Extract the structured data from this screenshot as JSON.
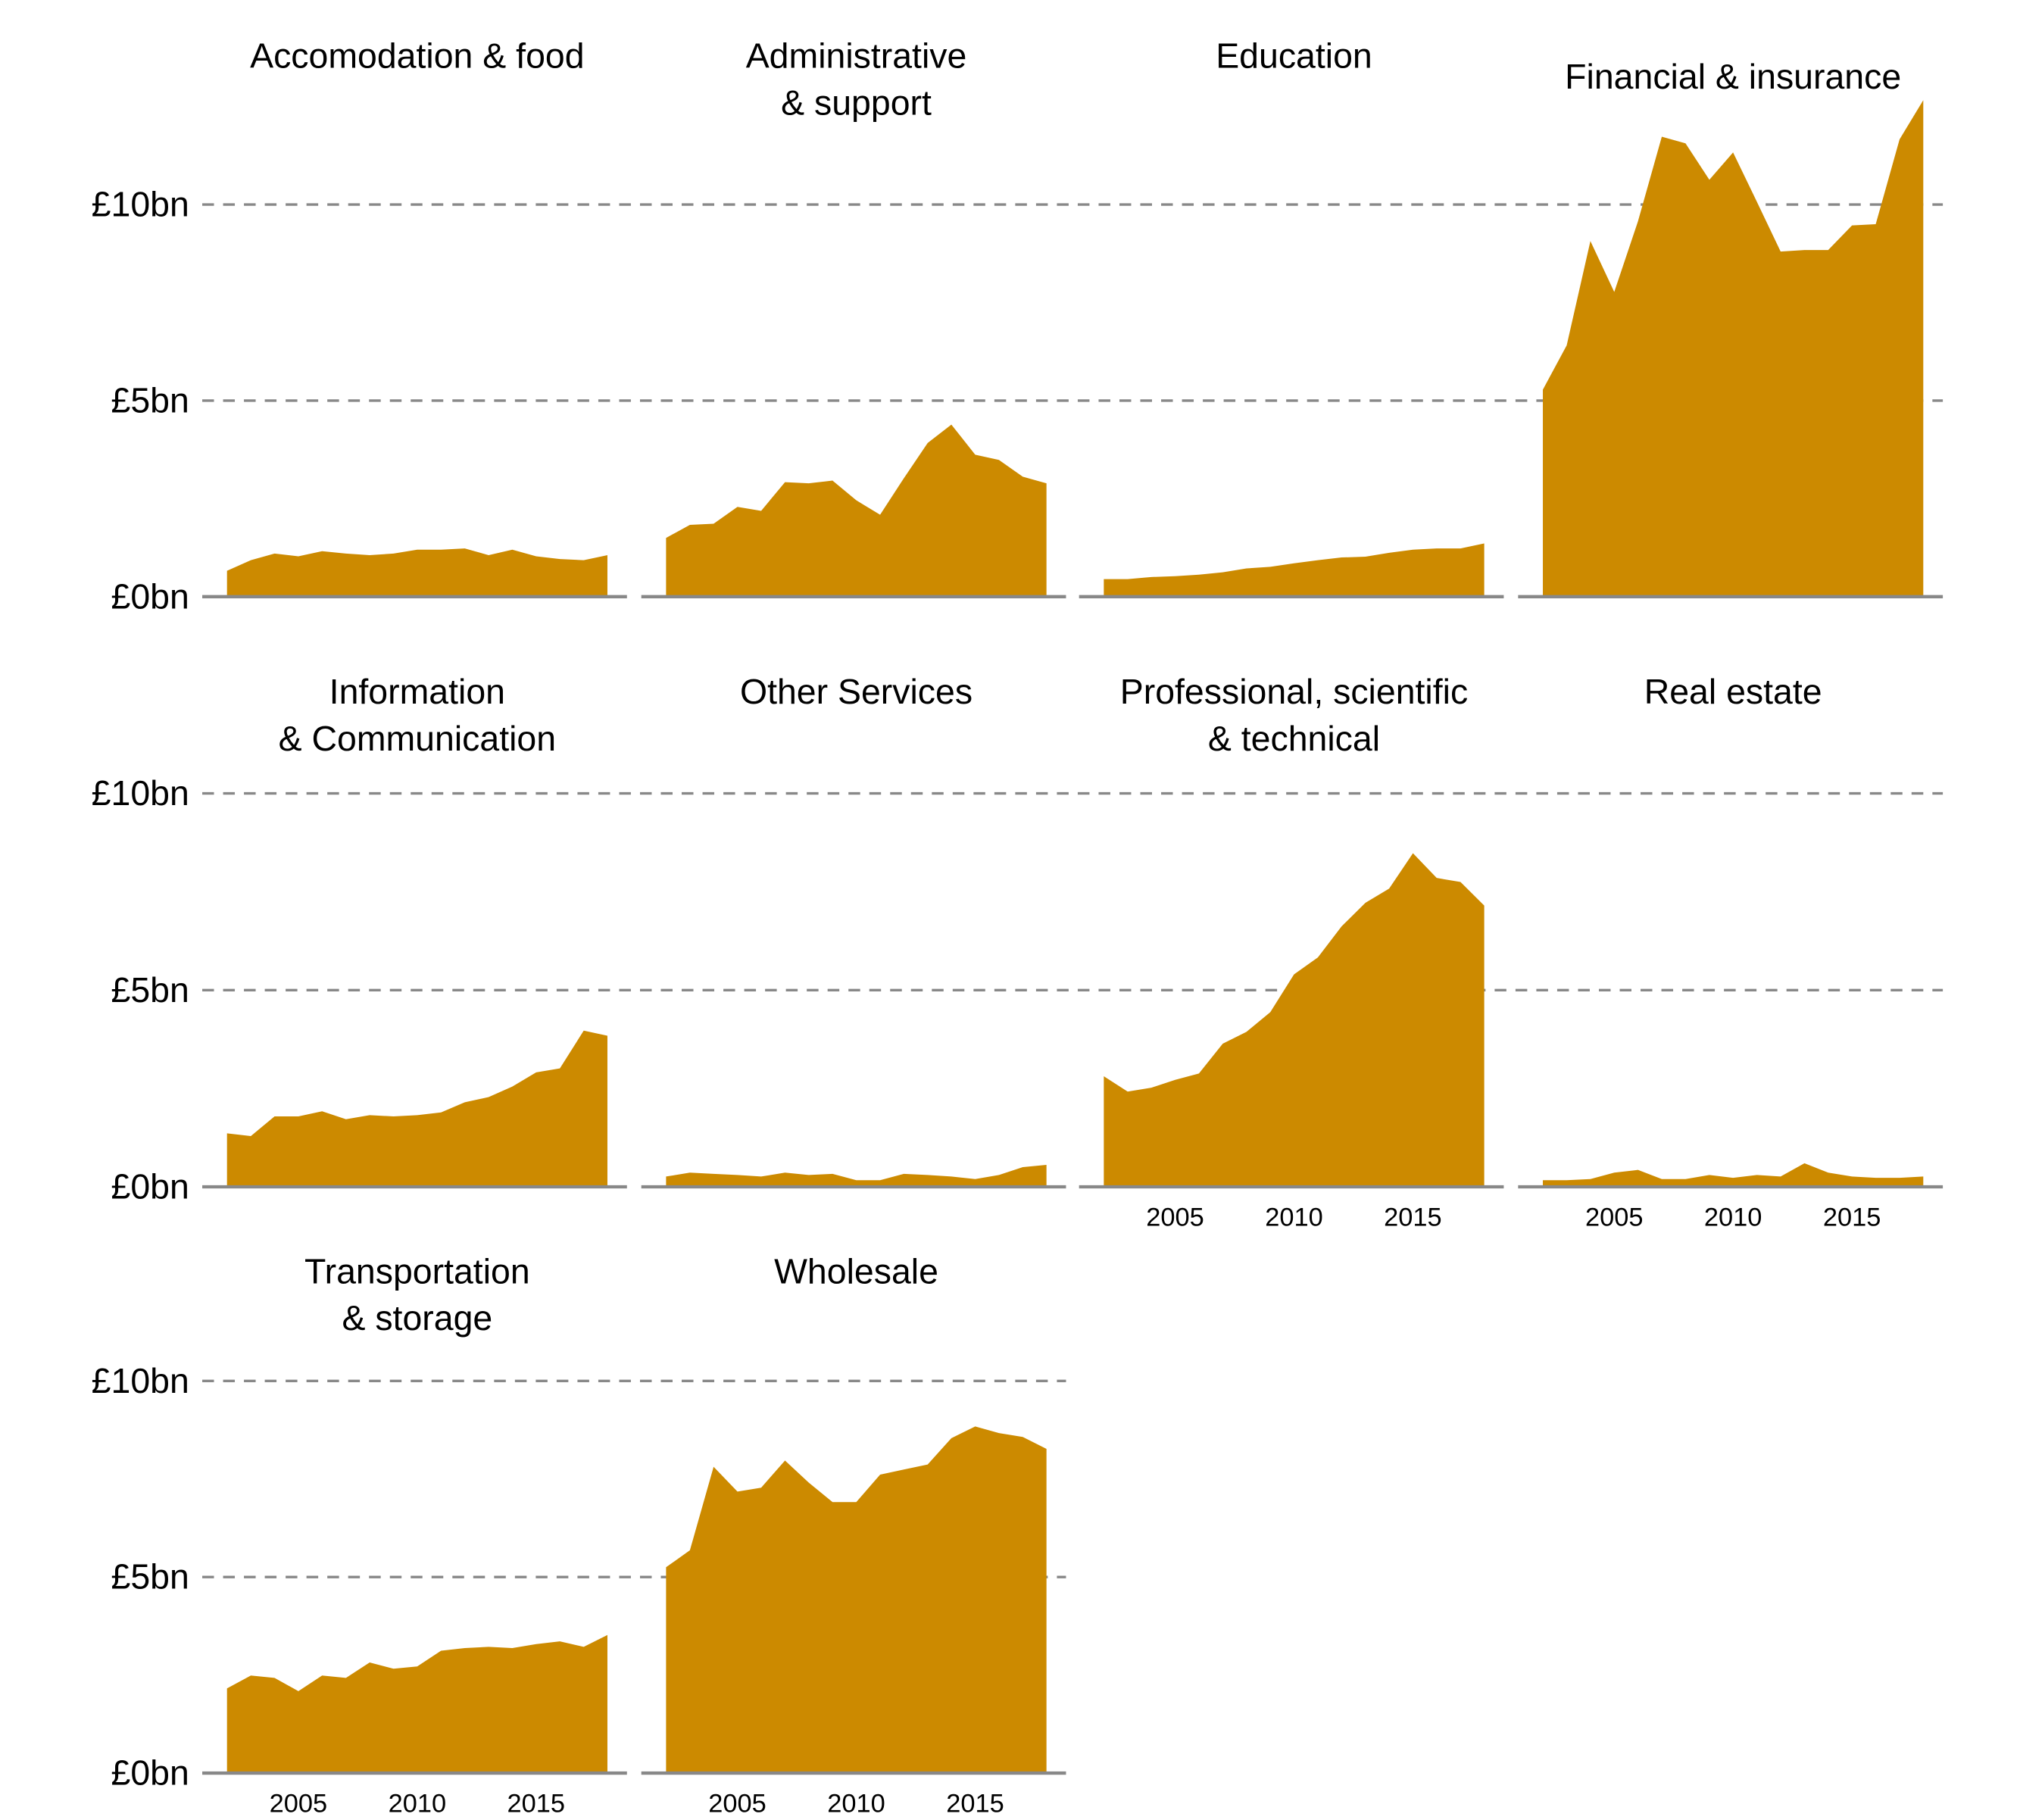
{
  "chart_data": [
    {
      "type": "area",
      "title": [
        "Accomodation & food"
      ],
      "x": [
        2002,
        2003,
        2004,
        2005,
        2006,
        2007,
        2008,
        2009,
        2010,
        2011,
        2012,
        2013,
        2014,
        2015,
        2016,
        2017,
        2018
      ],
      "values": [
        0.66,
        0.93,
        1.1,
        1.03,
        1.16,
        1.1,
        1.06,
        1.1,
        1.2,
        1.2,
        1.23,
        1.06,
        1.2,
        1.03,
        0.96,
        0.93,
        1.06
      ],
      "show_x_ticks": false
    },
    {
      "type": "area",
      "title": [
        "Administrative",
        "& support"
      ],
      "x": [
        2002,
        2003,
        2004,
        2005,
        2006,
        2007,
        2008,
        2009,
        2010,
        2011,
        2012,
        2013,
        2014,
        2015,
        2016,
        2017,
        2018
      ],
      "values": [
        1.5,
        1.83,
        1.86,
        2.29,
        2.19,
        2.92,
        2.89,
        2.96,
        2.46,
        2.09,
        3.02,
        3.92,
        4.39,
        3.62,
        3.49,
        3.06,
        2.89
      ],
      "show_x_ticks": false
    },
    {
      "type": "area",
      "title": [
        "Education"
      ],
      "x": [
        2002,
        2003,
        2004,
        2005,
        2006,
        2007,
        2008,
        2009,
        2010,
        2011,
        2012,
        2013,
        2014,
        2015,
        2016,
        2017,
        2018
      ],
      "values": [
        0.45,
        0.45,
        0.5,
        0.52,
        0.56,
        0.62,
        0.72,
        0.76,
        0.85,
        0.93,
        1.0,
        1.02,
        1.12,
        1.2,
        1.23,
        1.23,
        1.36
      ],
      "show_x_ticks": false
    },
    {
      "type": "area",
      "title": [
        "Financial & insurance"
      ],
      "x": [
        2002,
        2003,
        2004,
        2005,
        2006,
        2007,
        2008,
        2009,
        2010,
        2011,
        2012,
        2013,
        2014,
        2015,
        2016,
        2017,
        2018
      ],
      "values": [
        5.28,
        6.41,
        9.07,
        7.77,
        9.57,
        11.73,
        11.56,
        10.63,
        11.33,
        10.07,
        8.8,
        8.84,
        8.84,
        9.47,
        9.5,
        11.66,
        12.66
      ],
      "show_x_ticks": false
    },
    {
      "type": "area",
      "title": [
        "Information",
        "& Communication"
      ],
      "x": [
        2002,
        2003,
        2004,
        2005,
        2006,
        2007,
        2008,
        2009,
        2010,
        2011,
        2012,
        2013,
        2014,
        2015,
        2016,
        2017,
        2018
      ],
      "values": [
        1.36,
        1.29,
        1.79,
        1.79,
        1.92,
        1.72,
        1.82,
        1.79,
        1.82,
        1.89,
        2.15,
        2.28,
        2.55,
        2.91,
        3.01,
        3.97,
        3.84
      ],
      "show_x_ticks": false
    },
    {
      "type": "area",
      "title": [
        "Other Services"
      ],
      "x": [
        2002,
        2003,
        2004,
        2005,
        2006,
        2007,
        2008,
        2009,
        2010,
        2011,
        2012,
        2013,
        2014,
        2015,
        2016,
        2017,
        2018
      ],
      "values": [
        0.26,
        0.36,
        0.33,
        0.3,
        0.26,
        0.36,
        0.3,
        0.33,
        0.17,
        0.17,
        0.33,
        0.3,
        0.26,
        0.2,
        0.3,
        0.5,
        0.56
      ],
      "show_x_ticks": false
    },
    {
      "type": "area",
      "title": [
        "Professional, scientific",
        "& technical"
      ],
      "x": [
        2002,
        2003,
        2004,
        2005,
        2006,
        2007,
        2008,
        2009,
        2010,
        2011,
        2012,
        2013,
        2014,
        2015,
        2016,
        2017,
        2018
      ],
      "values": [
        2.81,
        2.42,
        2.52,
        2.72,
        2.88,
        3.64,
        3.94,
        4.44,
        5.4,
        5.83,
        6.62,
        7.22,
        7.58,
        8.48,
        7.85,
        7.75,
        7.15
      ],
      "show_x_ticks": true
    },
    {
      "type": "area",
      "title": [
        "Real estate"
      ],
      "x": [
        2002,
        2003,
        2004,
        2005,
        2006,
        2007,
        2008,
        2009,
        2010,
        2011,
        2012,
        2013,
        2014,
        2015,
        2016,
        2017,
        2018
      ],
      "values": [
        0.17,
        0.17,
        0.2,
        0.36,
        0.43,
        0.2,
        0.2,
        0.3,
        0.23,
        0.3,
        0.26,
        0.6,
        0.36,
        0.26,
        0.23,
        0.23,
        0.26
      ],
      "show_x_ticks": true
    },
    {
      "type": "area",
      "title": [
        "Transportation",
        "& storage"
      ],
      "x": [
        2002,
        2003,
        2004,
        2005,
        2006,
        2007,
        2008,
        2009,
        2010,
        2011,
        2012,
        2013,
        2014,
        2015,
        2016,
        2017,
        2018
      ],
      "values": [
        2.16,
        2.49,
        2.43,
        2.09,
        2.49,
        2.43,
        2.82,
        2.66,
        2.72,
        3.12,
        3.19,
        3.22,
        3.19,
        3.29,
        3.36,
        3.22,
        3.52
      ],
      "show_x_ticks": true
    },
    {
      "type": "area",
      "title": [
        "Wholesale"
      ],
      "x": [
        2002,
        2003,
        2004,
        2005,
        2006,
        2007,
        2008,
        2009,
        2010,
        2011,
        2012,
        2013,
        2014,
        2015,
        2016,
        2017,
        2018
      ],
      "values": [
        5.25,
        5.68,
        7.81,
        7.18,
        7.28,
        7.97,
        7.41,
        6.91,
        6.91,
        7.61,
        7.74,
        7.87,
        8.54,
        8.84,
        8.67,
        8.57,
        8.27
      ],
      "show_x_ticks": true
    }
  ],
  "shared": {
    "y_ticks": [
      0,
      5,
      10
    ],
    "y_tick_labels": [
      "£0bn",
      "£5bn",
      "£10bn"
    ],
    "x_ticks": [
      2005,
      2010,
      2015
    ],
    "x_tick_labels": [
      "2005",
      "2010",
      "2015"
    ],
    "ylim": [
      0,
      10
    ],
    "xlim": [
      2002,
      2018
    ],
    "grid": "horizontal dashed",
    "fill_color": "#CC8A00",
    "grid_color": "#888888"
  }
}
